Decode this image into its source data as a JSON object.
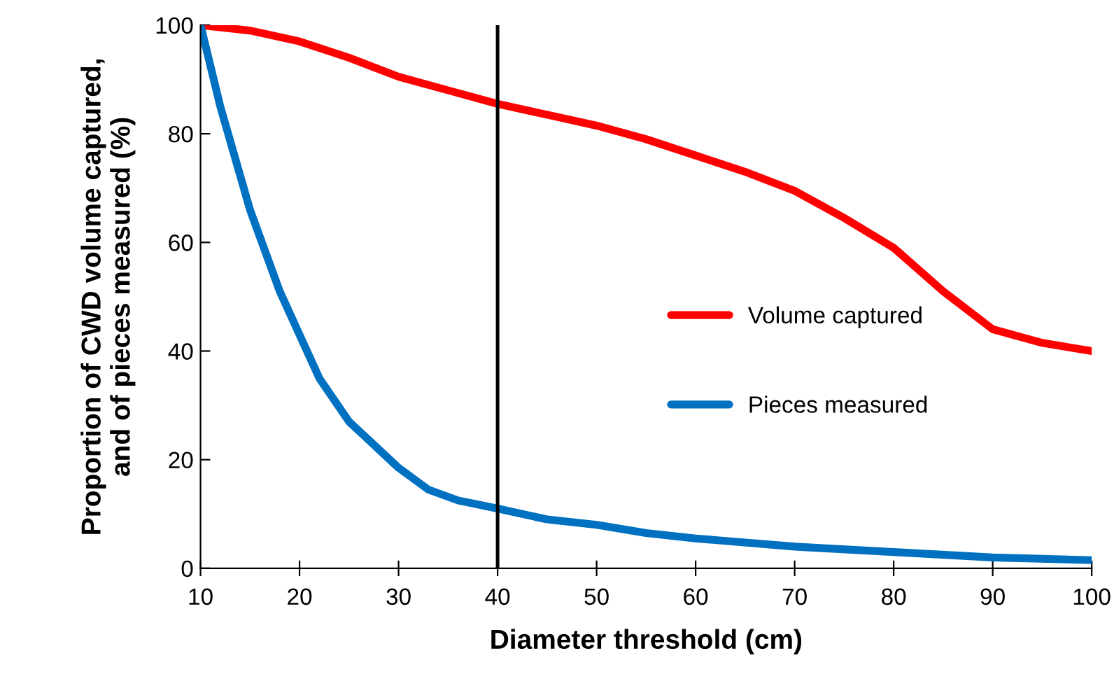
{
  "chart_data": {
    "type": "line",
    "xlabel": "Diameter threshold (cm)",
    "ylabel": "Proportion of CWD volume captured,\nand of pieces measured (%)",
    "xlim": [
      10,
      100
    ],
    "xticks": [
      10,
      20,
      30,
      40,
      50,
      60,
      70,
      80,
      90,
      100
    ],
    "ylim": [
      0,
      100
    ],
    "yticks": [
      0,
      20,
      40,
      60,
      80,
      100
    ],
    "grid": false,
    "legend": "right",
    "marker": "none",
    "line_style": "solid",
    "ref_lines": [
      {
        "axis": "x",
        "value": 40,
        "color": "#000000",
        "line_style": "solid"
      }
    ],
    "series": [
      {
        "name": "Volume captured",
        "color": "#ff0000",
        "x": [
          10,
          15,
          20,
          25,
          30,
          35,
          40,
          45,
          50,
          55,
          60,
          65,
          70,
          75,
          80,
          85,
          90,
          95,
          100
        ],
        "values": [
          100,
          99,
          97,
          94,
          90.5,
          88,
          85.5,
          83.5,
          81.5,
          79,
          76,
          73,
          69.5,
          64.5,
          59,
          51,
          44,
          41.5,
          40
        ]
      },
      {
        "name": "Pieces measured",
        "color": "#0070c0",
        "x": [
          10,
          12,
          15,
          18,
          20,
          22,
          25,
          30,
          33,
          36,
          40,
          45,
          50,
          55,
          60,
          70,
          80,
          90,
          100
        ],
        "values": [
          100,
          85,
          66,
          51,
          43,
          35,
          27,
          18.5,
          14.5,
          12.5,
          11,
          9,
          8,
          6.5,
          5.5,
          4,
          3,
          2,
          1.5
        ]
      }
    ]
  }
}
